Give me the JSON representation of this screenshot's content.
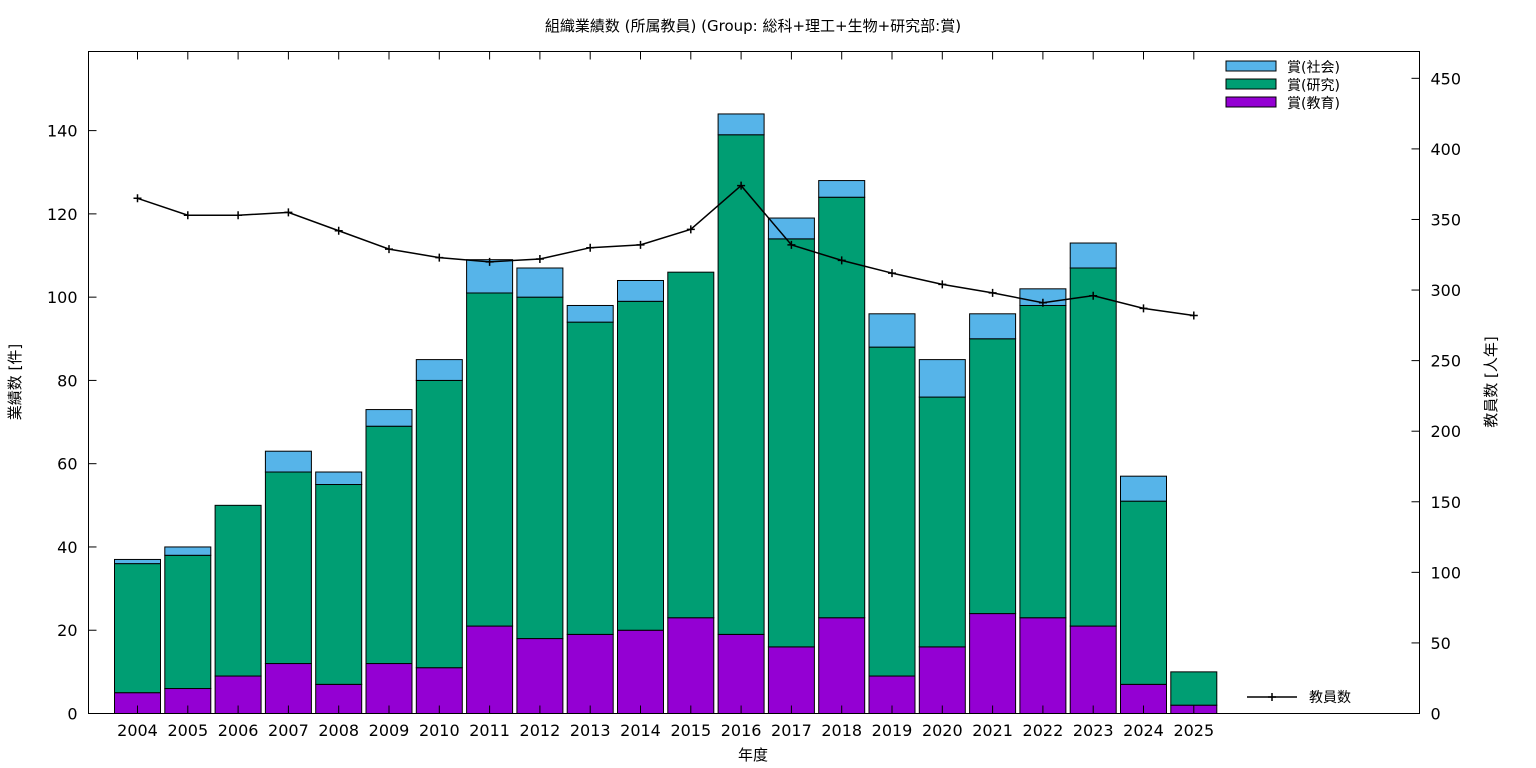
{
  "chart_data": {
    "type": "bar",
    "stacked": true,
    "title": "組織業績数 (所属教員) (Group: 総科+理工+生物+研究部:賞)",
    "xlabel": "年度",
    "ylabel": "業績数 [件]",
    "y2label": "教員数 [人年]",
    "categories": [
      "2004",
      "2005",
      "2006",
      "2007",
      "2008",
      "2009",
      "2010",
      "2011",
      "2012",
      "2013",
      "2014",
      "2015",
      "2016",
      "2017",
      "2018",
      "2019",
      "2020",
      "2021",
      "2022",
      "2023",
      "2024",
      "2025"
    ],
    "ylim": [
      0,
      159
    ],
    "y2lim": [
      0,
      469
    ],
    "yticks": [
      0,
      20,
      40,
      60,
      80,
      100,
      120,
      140
    ],
    "y2ticks": [
      0,
      50,
      100,
      150,
      200,
      250,
      300,
      350,
      400,
      450
    ],
    "grid": false,
    "legend_position": "top-right",
    "series": [
      {
        "name": "賞(教育)",
        "color": "#9400d3",
        "values": [
          5,
          6,
          9,
          12,
          7,
          12,
          11,
          21,
          18,
          19,
          20,
          23,
          19,
          16,
          23,
          9,
          16,
          24,
          23,
          21,
          7,
          2
        ]
      },
      {
        "name": "賞(研究)",
        "color": "#009e73",
        "values": [
          31,
          32,
          41,
          46,
          48,
          57,
          69,
          80,
          82,
          75,
          79,
          83,
          120,
          98,
          101,
          79,
          60,
          66,
          75,
          86,
          44,
          8
        ]
      },
      {
        "name": "賞(社会)",
        "color": "#56b4e9",
        "values": [
          1,
          2,
          0,
          5,
          3,
          4,
          5,
          8,
          7,
          4,
          5,
          0,
          5,
          5,
          4,
          8,
          9,
          6,
          4,
          6,
          6,
          0
        ]
      }
    ],
    "line_series": {
      "name": "教員数",
      "axis": "right",
      "color": "#000000",
      "values": [
        365,
        353,
        353,
        355,
        342,
        329,
        323,
        320,
        322,
        330,
        332,
        343,
        374,
        332,
        321,
        312,
        304,
        298,
        291,
        296,
        287,
        282
      ]
    }
  }
}
